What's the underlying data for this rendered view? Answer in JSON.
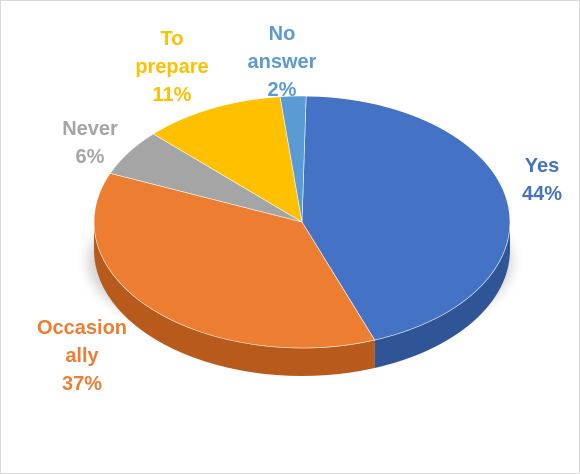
{
  "chart_data": {
    "type": "pie",
    "title": "",
    "slices": [
      {
        "label_lines": [
          "Yes"
        ],
        "pct": "44%",
        "value": 44,
        "color": "#4472c4",
        "side": "#2f5597"
      },
      {
        "label_lines": [
          "Occasion",
          "ally"
        ],
        "pct": "37%",
        "value": 37,
        "color": "#ed7d31",
        "side": "#b85a1c"
      },
      {
        "label_lines": [
          "Never"
        ],
        "pct": "6%",
        "value": 6,
        "color": "#a5a5a5",
        "side": "#7b7b7b"
      },
      {
        "label_lines": [
          "To",
          "prepare"
        ],
        "pct": "11%",
        "value": 11,
        "color": "#ffc000",
        "side": "#c99700"
      },
      {
        "label_lines": [
          "No",
          "answer"
        ],
        "pct": "2%",
        "value": 2,
        "color": "#5b9bd5",
        "side": "#41719c"
      }
    ],
    "legend": "none",
    "style": "3d-pie"
  }
}
